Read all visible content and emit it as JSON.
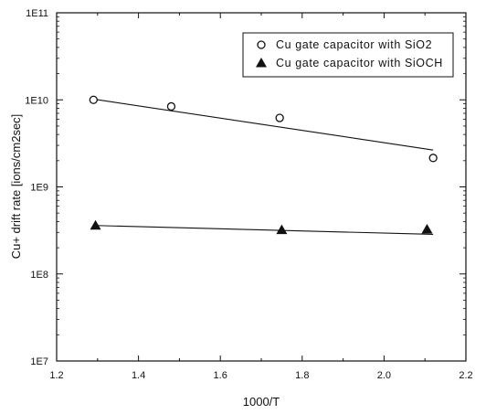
{
  "chart_data": {
    "type": "scatter",
    "xlabel": "1000/T",
    "ylabel": "Cu+ drift rate [ions/cm2sec]",
    "xlim": [
      1.2,
      2.2
    ],
    "ylim": [
      10000000,
      100000000000
    ],
    "yscale": "log",
    "xticks": [
      1.2,
      1.4,
      1.6,
      1.8,
      2.0,
      2.2
    ],
    "xtick_labels": [
      "1.2",
      "1.4",
      "1.6",
      "1.8",
      "2.0",
      "2.2"
    ],
    "yticks": [
      10000000,
      100000000,
      1000000000,
      10000000000,
      100000000000
    ],
    "ytick_labels": [
      "1E7",
      "1E8",
      "1E9",
      "1E10",
      "1E11"
    ],
    "grid": false,
    "legend_position": "top-right",
    "series": [
      {
        "name": "Cu gate capacitor with SiO2",
        "marker": "open-circle",
        "x": [
          1.29,
          1.48,
          1.745,
          2.12
        ],
        "y": [
          10000000000,
          8400000000,
          6200000000,
          2150000000
        ],
        "fit": {
          "x": [
            1.29,
            2.12
          ],
          "y": [
            10200000000,
            2650000000
          ]
        }
      },
      {
        "name": "Cu gate capacitor with SiOCH",
        "marker": "filled-triangle",
        "x": [
          1.295,
          1.75,
          2.105
        ],
        "y": [
          360000000,
          320000000,
          325000000
        ],
        "fit": {
          "x": [
            1.295,
            2.12
          ],
          "y": [
            360000000,
            285000000
          ]
        }
      }
    ]
  }
}
